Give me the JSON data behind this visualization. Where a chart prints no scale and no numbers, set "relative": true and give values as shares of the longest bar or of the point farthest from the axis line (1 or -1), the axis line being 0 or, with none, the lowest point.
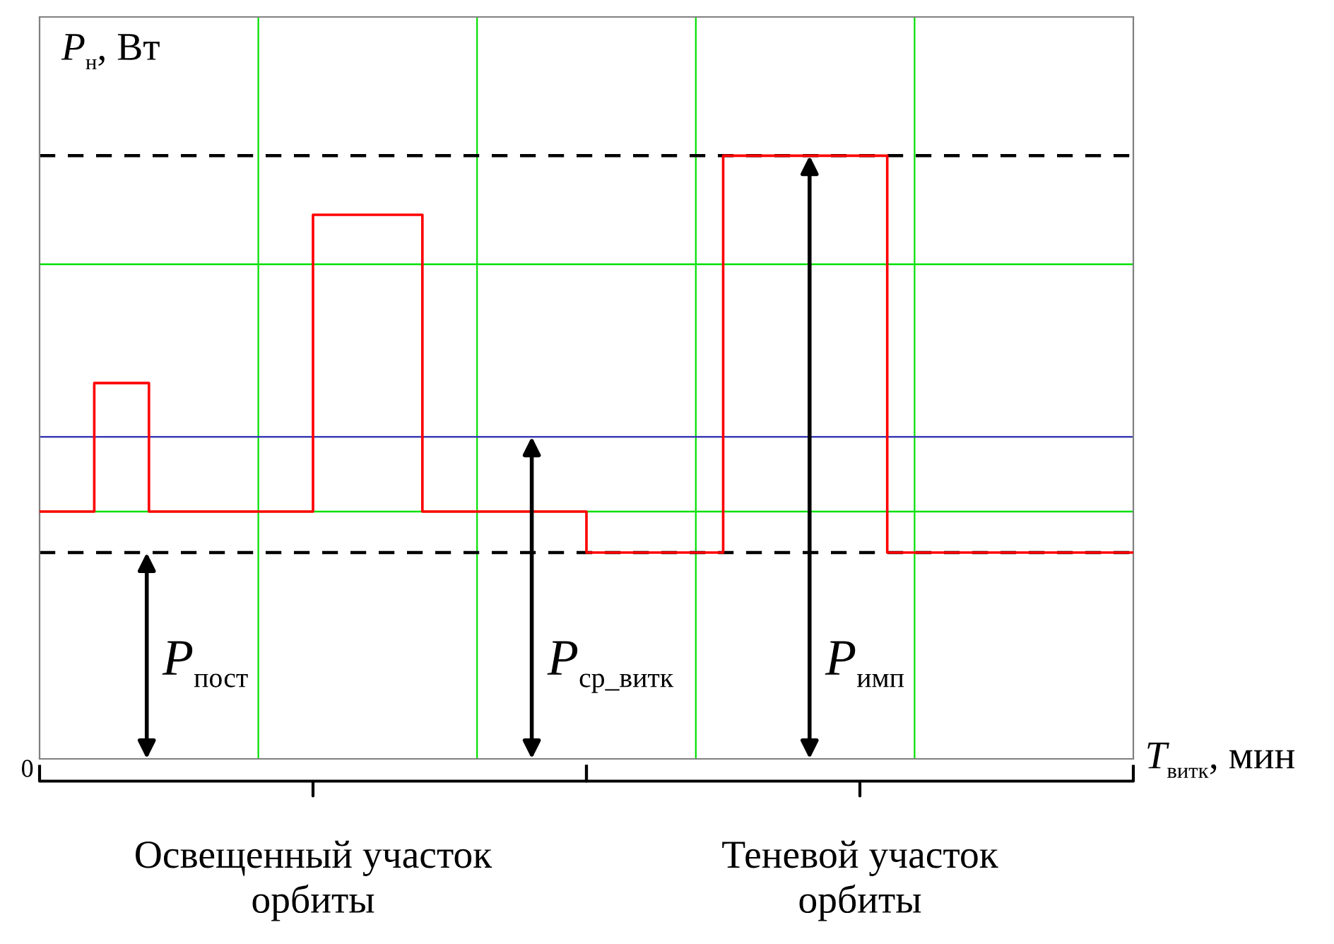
{
  "chart_data": {
    "type": "step",
    "relative": true,
    "xlabel": "T$_{витк}$, мин",
    "ylabel": "P$_{н}$, Вт",
    "categories": [
      null,
      null,
      null,
      null,
      null,
      null,
      null,
      null,
      null,
      null,
      null,
      null,
      null,
      null,
      null,
      null,
      null,
      null,
      null,
      null,
      null,
      null,
      null,
      null,
      null,
      null,
      null,
      null,
      null,
      null,
      null,
      null,
      null,
      null,
      null,
      null,
      null,
      null,
      null,
      null,
      null
    ],
    "series": [
      {
        "color": "#ff0000",
        "values": [
          0.41,
          0.41,
          0.623,
          0.623,
          0.41,
          0.41,
          0.41,
          0.41,
          0.41,
          0.41,
          0.902,
          0.902,
          0.902,
          0.902,
          0.41,
          0.41,
          0.41,
          0.41,
          0.41,
          0.41,
          0.342,
          0.342,
          0.342,
          0.342,
          0.342,
          1.0,
          1.0,
          1.0,
          1.0,
          1.0,
          1.0,
          0.342,
          0.342,
          0.342,
          0.342,
          0.342,
          0.342,
          0.342,
          0.342,
          0.342,
          0.342
        ]
      }
    ],
    "grid": "x",
    "ref_lines": [
      {
        "axis": "y",
        "value": 0.41,
        "color": "#00e000",
        "line_style": "solid"
      },
      {
        "axis": "y",
        "value": 0.82,
        "color": "#00e000",
        "line_style": "solid"
      },
      {
        "axis": "y",
        "value": 0.342,
        "color": "#000000",
        "line_style": "dashed"
      },
      {
        "axis": "y",
        "value": 1.0,
        "color": "#000000",
        "line_style": "dashed"
      },
      {
        "axis": "y",
        "value": 0.534,
        "color": "#3c3cb4",
        "line_style": "solid"
      }
    ],
    "annotations": [
      "P$_{пост}$",
      "P$_{ср_витк}$",
      "P$_{имп}$",
      "Освещенный участок\nорбиты",
      "Теневой участок\nорбиты",
      "0"
    ]
  }
}
